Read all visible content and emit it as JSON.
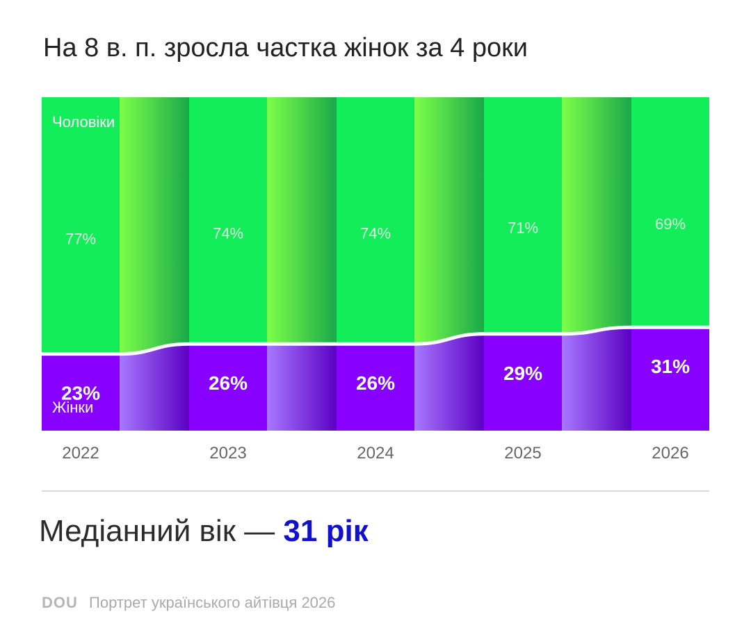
{
  "title": "На 8 в. п. зросла частка жінок за 4 роки",
  "chart_data": {
    "type": "bar",
    "stacked": true,
    "percent": true,
    "categories": [
      "2022",
      "2023",
      "2024",
      "2025",
      "2026"
    ],
    "series": [
      {
        "name": "Чоловіки",
        "values": [
          77,
          74,
          74,
          71,
          69
        ],
        "labels": [
          "77%",
          "74%",
          "74%",
          "71%",
          "69%"
        ],
        "color": "#14ed5a"
      },
      {
        "name": "Жінки",
        "values": [
          23,
          26,
          26,
          29,
          31
        ],
        "labels": [
          "23%",
          "26%",
          "26%",
          "29%",
          "31%"
        ],
        "color": "#8800ff"
      }
    ],
    "ylim": [
      0,
      100
    ],
    "grid": false
  },
  "median": {
    "label": "Медіанний вік —",
    "value": "31 рік"
  },
  "footer": {
    "logo": "DOU",
    "text": "Портрет українського айтівця 2026"
  },
  "colors": {
    "men": "#14ed5a",
    "men_label": "#d7ffe0",
    "men_transition_light": "#7dff4a",
    "men_transition_dark": "#1aa84a",
    "women": "#8800ff",
    "women_transition_light": "#a778ff",
    "women_transition_dark": "#5b00c2",
    "axis_text": "#666666"
  }
}
